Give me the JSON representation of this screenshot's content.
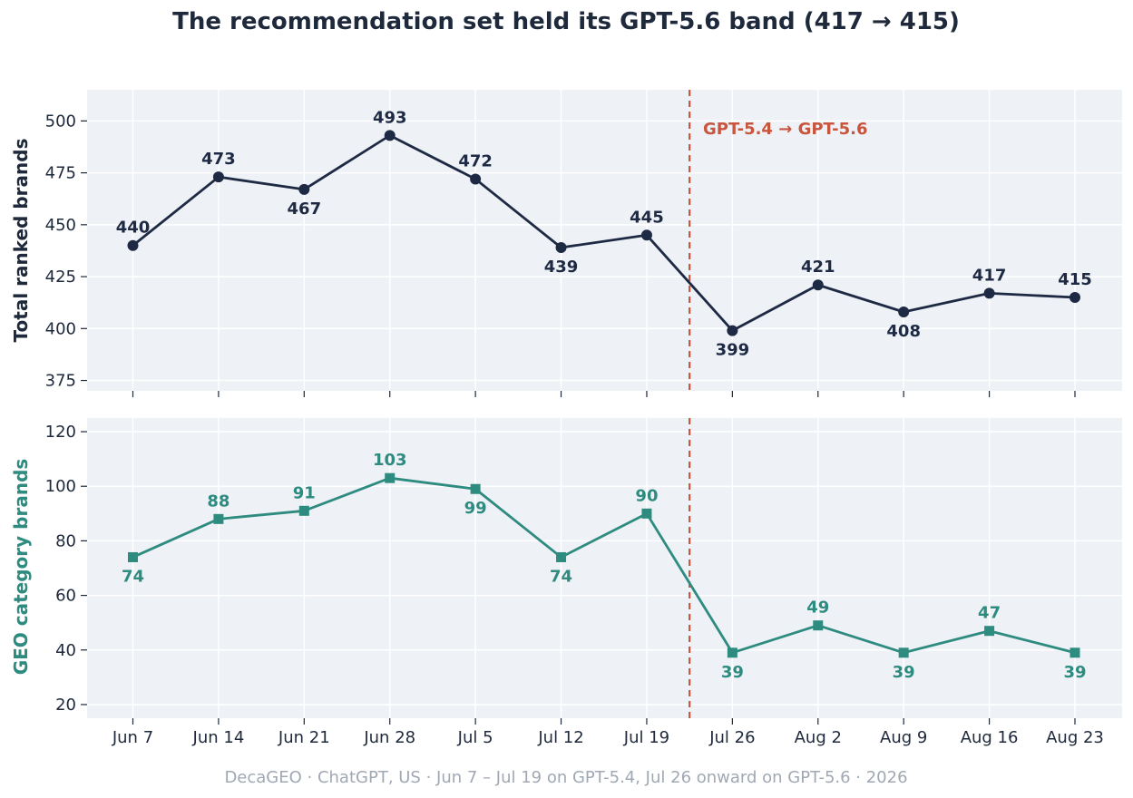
{
  "chart_data": {
    "type": "line",
    "title": "The recommendation set held its GPT-5.6 band (417 → 415)",
    "footer": "DecaGEO · ChatGPT, US · Jun 7 – Jul 19 on GPT-5.4, Jul 26 onward on GPT-5.6 · 2026",
    "categories": [
      "Jun 7",
      "Jun 14",
      "Jun 21",
      "Jun 28",
      "Jul 5",
      "Jul 12",
      "Jul 19",
      "Jul 26",
      "Aug 2",
      "Aug 9",
      "Aug 16",
      "Aug 23"
    ],
    "annotation": {
      "text": "GPT-5.4 → GPT-5.6",
      "between": [
        "Jul 19",
        "Jul 26"
      ],
      "color": "#c8553d"
    },
    "panels": [
      {
        "ylabel": "Total ranked brands",
        "ylim": [
          370,
          515
        ],
        "yticks": [
          375,
          400,
          425,
          450,
          475,
          500
        ],
        "color": "#1e2a44",
        "marker": "circle",
        "values": [
          440,
          473,
          467,
          493,
          472,
          439,
          445,
          399,
          421,
          408,
          417,
          415
        ],
        "label_pos": [
          "above",
          "above",
          "below",
          "above",
          "above",
          "below",
          "above",
          "below",
          "above",
          "below",
          "above",
          "above"
        ]
      },
      {
        "ylabel": "GEO category brands",
        "ylim": [
          15,
          125
        ],
        "yticks": [
          20,
          40,
          60,
          80,
          100,
          120
        ],
        "color": "#2e8b80",
        "marker": "square",
        "values": [
          74,
          88,
          91,
          103,
          99,
          74,
          90,
          39,
          49,
          39,
          47,
          39
        ],
        "label_pos": [
          "below",
          "above",
          "above",
          "above",
          "below",
          "below",
          "above",
          "below",
          "above",
          "below",
          "above",
          "below"
        ]
      }
    ],
    "grid": true,
    "background": "#eef1f6"
  }
}
